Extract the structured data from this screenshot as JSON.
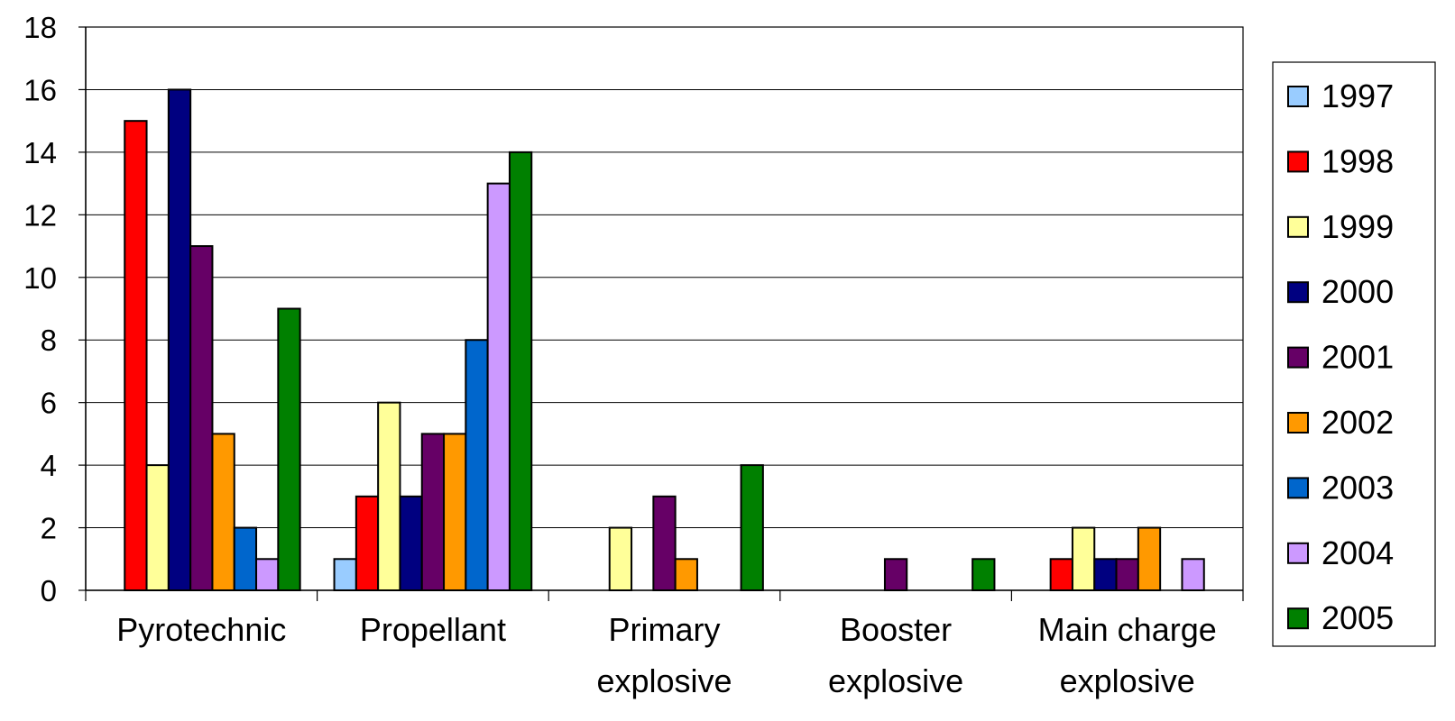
{
  "chart_data": {
    "type": "bar",
    "title": "",
    "xlabel": "",
    "ylabel": "",
    "ylim": [
      0,
      18
    ],
    "yticks": [
      0,
      2,
      4,
      6,
      8,
      10,
      12,
      14,
      16,
      18
    ],
    "grid": true,
    "legend_position": "right",
    "categories": [
      [
        "Pyrotechnic"
      ],
      [
        "Propellant"
      ],
      [
        "Primary",
        "explosive"
      ],
      [
        "Booster",
        "explosive"
      ],
      [
        "Main charge",
        "explosive"
      ]
    ],
    "series": [
      {
        "name": "1997",
        "color": "#99CCFF",
        "values": [
          0,
          1,
          0,
          0,
          0
        ]
      },
      {
        "name": "1998",
        "color": "#FF0000",
        "values": [
          15,
          3,
          0,
          0,
          1
        ]
      },
      {
        "name": "1999",
        "color": "#FFFF99",
        "values": [
          4,
          6,
          2,
          0,
          2
        ]
      },
      {
        "name": "2000",
        "color": "#000080",
        "values": [
          16,
          3,
          0,
          0,
          1
        ]
      },
      {
        "name": "2001",
        "color": "#660066",
        "values": [
          11,
          5,
          3,
          1,
          1
        ]
      },
      {
        "name": "2002",
        "color": "#FF9900",
        "values": [
          5,
          5,
          1,
          0,
          2
        ]
      },
      {
        "name": "2003",
        "color": "#0066CC",
        "values": [
          2,
          8,
          0,
          0,
          0
        ]
      },
      {
        "name": "2004",
        "color": "#CC99FF",
        "values": [
          1,
          13,
          0,
          0,
          1
        ]
      },
      {
        "name": "2005",
        "color": "#008000",
        "values": [
          9,
          14,
          4,
          1,
          0
        ]
      }
    ]
  }
}
